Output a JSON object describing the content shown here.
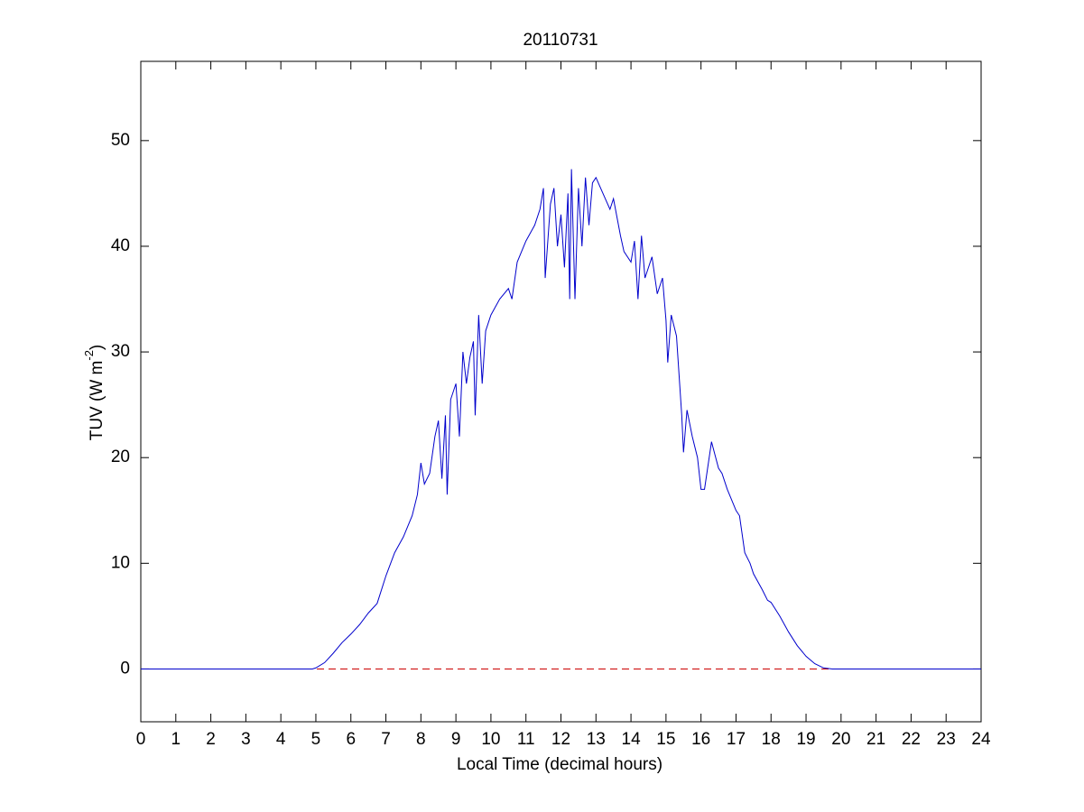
{
  "chart_data": {
    "type": "line",
    "title": "20110731",
    "xlabel": "Local Time (decimal hours)",
    "ylabel_parts": [
      "TUV (W m",
      "-2",
      ")"
    ],
    "x": [
      0,
      4.9,
      5,
      5.25,
      5.5,
      5.75,
      6,
      6.25,
      6.5,
      6.75,
      7,
      7.25,
      7.5,
      7.75,
      7.9,
      8,
      8.1,
      8.25,
      8.4,
      8.5,
      8.6,
      8.7,
      8.75,
      8.85,
      9,
      9.1,
      9.2,
      9.3,
      9.4,
      9.5,
      9.55,
      9.65,
      9.75,
      9.85,
      10,
      10.25,
      10.5,
      10.6,
      10.75,
      11,
      11.25,
      11.4,
      11.5,
      11.55,
      11.7,
      11.8,
      11.9,
      12,
      12.1,
      12.2,
      12.25,
      12.3,
      12.4,
      12.5,
      12.6,
      12.7,
      12.8,
      12.9,
      13,
      13.2,
      13.4,
      13.5,
      13.7,
      13.8,
      14,
      14.1,
      14.2,
      14.3,
      14.4,
      14.6,
      14.75,
      14.9,
      15,
      15.05,
      15.15,
      15.3,
      15.45,
      15.5,
      15.6,
      15.75,
      15.9,
      16,
      16.1,
      16.3,
      16.5,
      16.6,
      16.75,
      17,
      17.1,
      17.25,
      17.4,
      17.5,
      17.75,
      17.9,
      18,
      18.25,
      18.5,
      18.75,
      19,
      19.25,
      19.5,
      19.75,
      24
    ],
    "series": [
      {
        "color": "#0000cc",
        "values": [
          0,
          0,
          0.1,
          0.6,
          1.5,
          2.5,
          3.3,
          4.2,
          5.3,
          6.2,
          8.8,
          11,
          12.5,
          14.5,
          16.5,
          19.5,
          17.5,
          18.5,
          22,
          23.5,
          18,
          24,
          16.5,
          25.5,
          27,
          22,
          30,
          27,
          29.5,
          31,
          24,
          33.5,
          27,
          32,
          33.5,
          35,
          36,
          35,
          38.5,
          40.5,
          42,
          43.5,
          45.5,
          37,
          44,
          45.5,
          40,
          43,
          38,
          45,
          35,
          47.3,
          35,
          45.5,
          40,
          46.5,
          42,
          46,
          46.5,
          45,
          43.5,
          44.5,
          41,
          39.5,
          38.5,
          40.5,
          35,
          41,
          37,
          39,
          35.5,
          37,
          33,
          29,
          33.5,
          31.5,
          24,
          20.5,
          24.5,
          22,
          20,
          17,
          17,
          21.5,
          19,
          18.5,
          17,
          15,
          14.5,
          11,
          10,
          9,
          7.5,
          6.5,
          6.3,
          5,
          3.5,
          2.2,
          1.2,
          0.5,
          0.1,
          0,
          0
        ]
      }
    ],
    "reference_line": {
      "value": 0,
      "color": "#cc0000",
      "dashed": true
    },
    "xlim": [
      0,
      24
    ],
    "xticks": [
      0,
      1,
      2,
      3,
      4,
      5,
      6,
      7,
      8,
      9,
      10,
      11,
      12,
      13,
      14,
      15,
      16,
      17,
      18,
      19,
      20,
      21,
      22,
      23,
      24
    ],
    "ylim": [
      -5,
      57.5
    ],
    "yticks": [
      0,
      10,
      20,
      30,
      40,
      50
    ],
    "grid": false
  }
}
